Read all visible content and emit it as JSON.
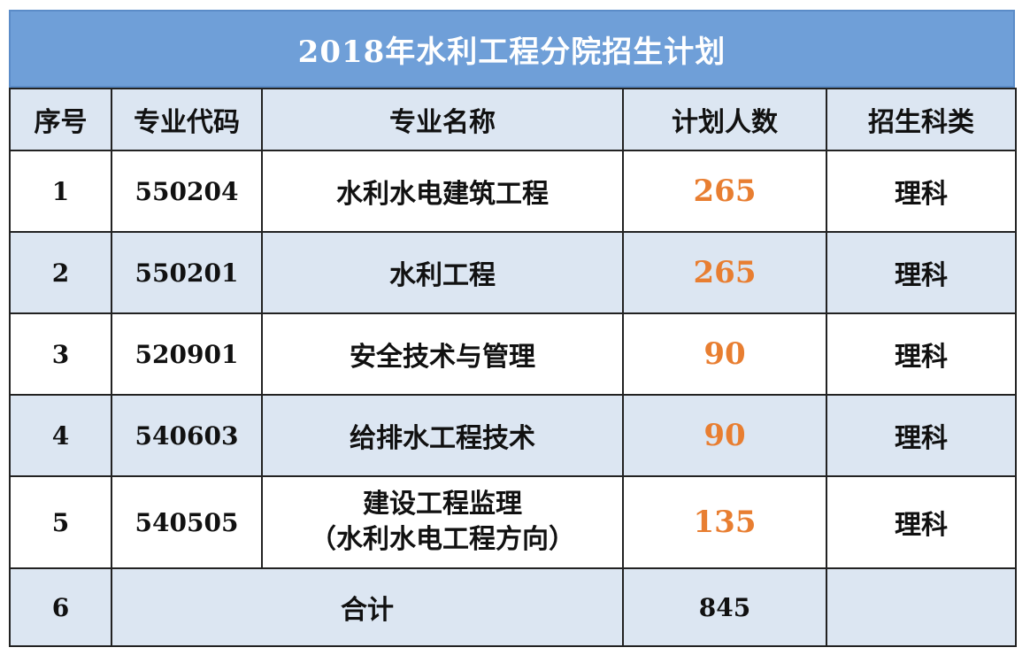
{
  "title": "2018年水利工程分院招生计划",
  "headers": [
    "序号",
    "专业代码",
    "专业名称",
    "计划人数",
    "招生科类"
  ],
  "rows": [
    {
      "index": "1",
      "code": "550204",
      "name": "水利水电建筑工程",
      "name_line2": "",
      "plan": "265",
      "category": "理科"
    },
    {
      "index": "2",
      "code": "550201",
      "name": "水利工程",
      "name_line2": "",
      "plan": "265",
      "category": "理科"
    },
    {
      "index": "3",
      "code": "520901",
      "name": "安全技术与管理",
      "name_line2": "",
      "plan": "90",
      "category": "理科"
    },
    {
      "index": "4",
      "code": "540603",
      "name": "给排水工程技术",
      "name_line2": "",
      "plan": "90",
      "category": "理科"
    },
    {
      "index": "5",
      "code": "540505",
      "name": "建设工程监理",
      "name_line2": "（水利水电工程方向）",
      "plan": "135",
      "category": "理科"
    }
  ],
  "total": {
    "index": "6",
    "label": "合计",
    "plan": "845",
    "category": ""
  },
  "colors": {
    "title_bg": "#6f9fd8",
    "row_shade": "#dce6f2",
    "plan_number": "#e87e31"
  }
}
